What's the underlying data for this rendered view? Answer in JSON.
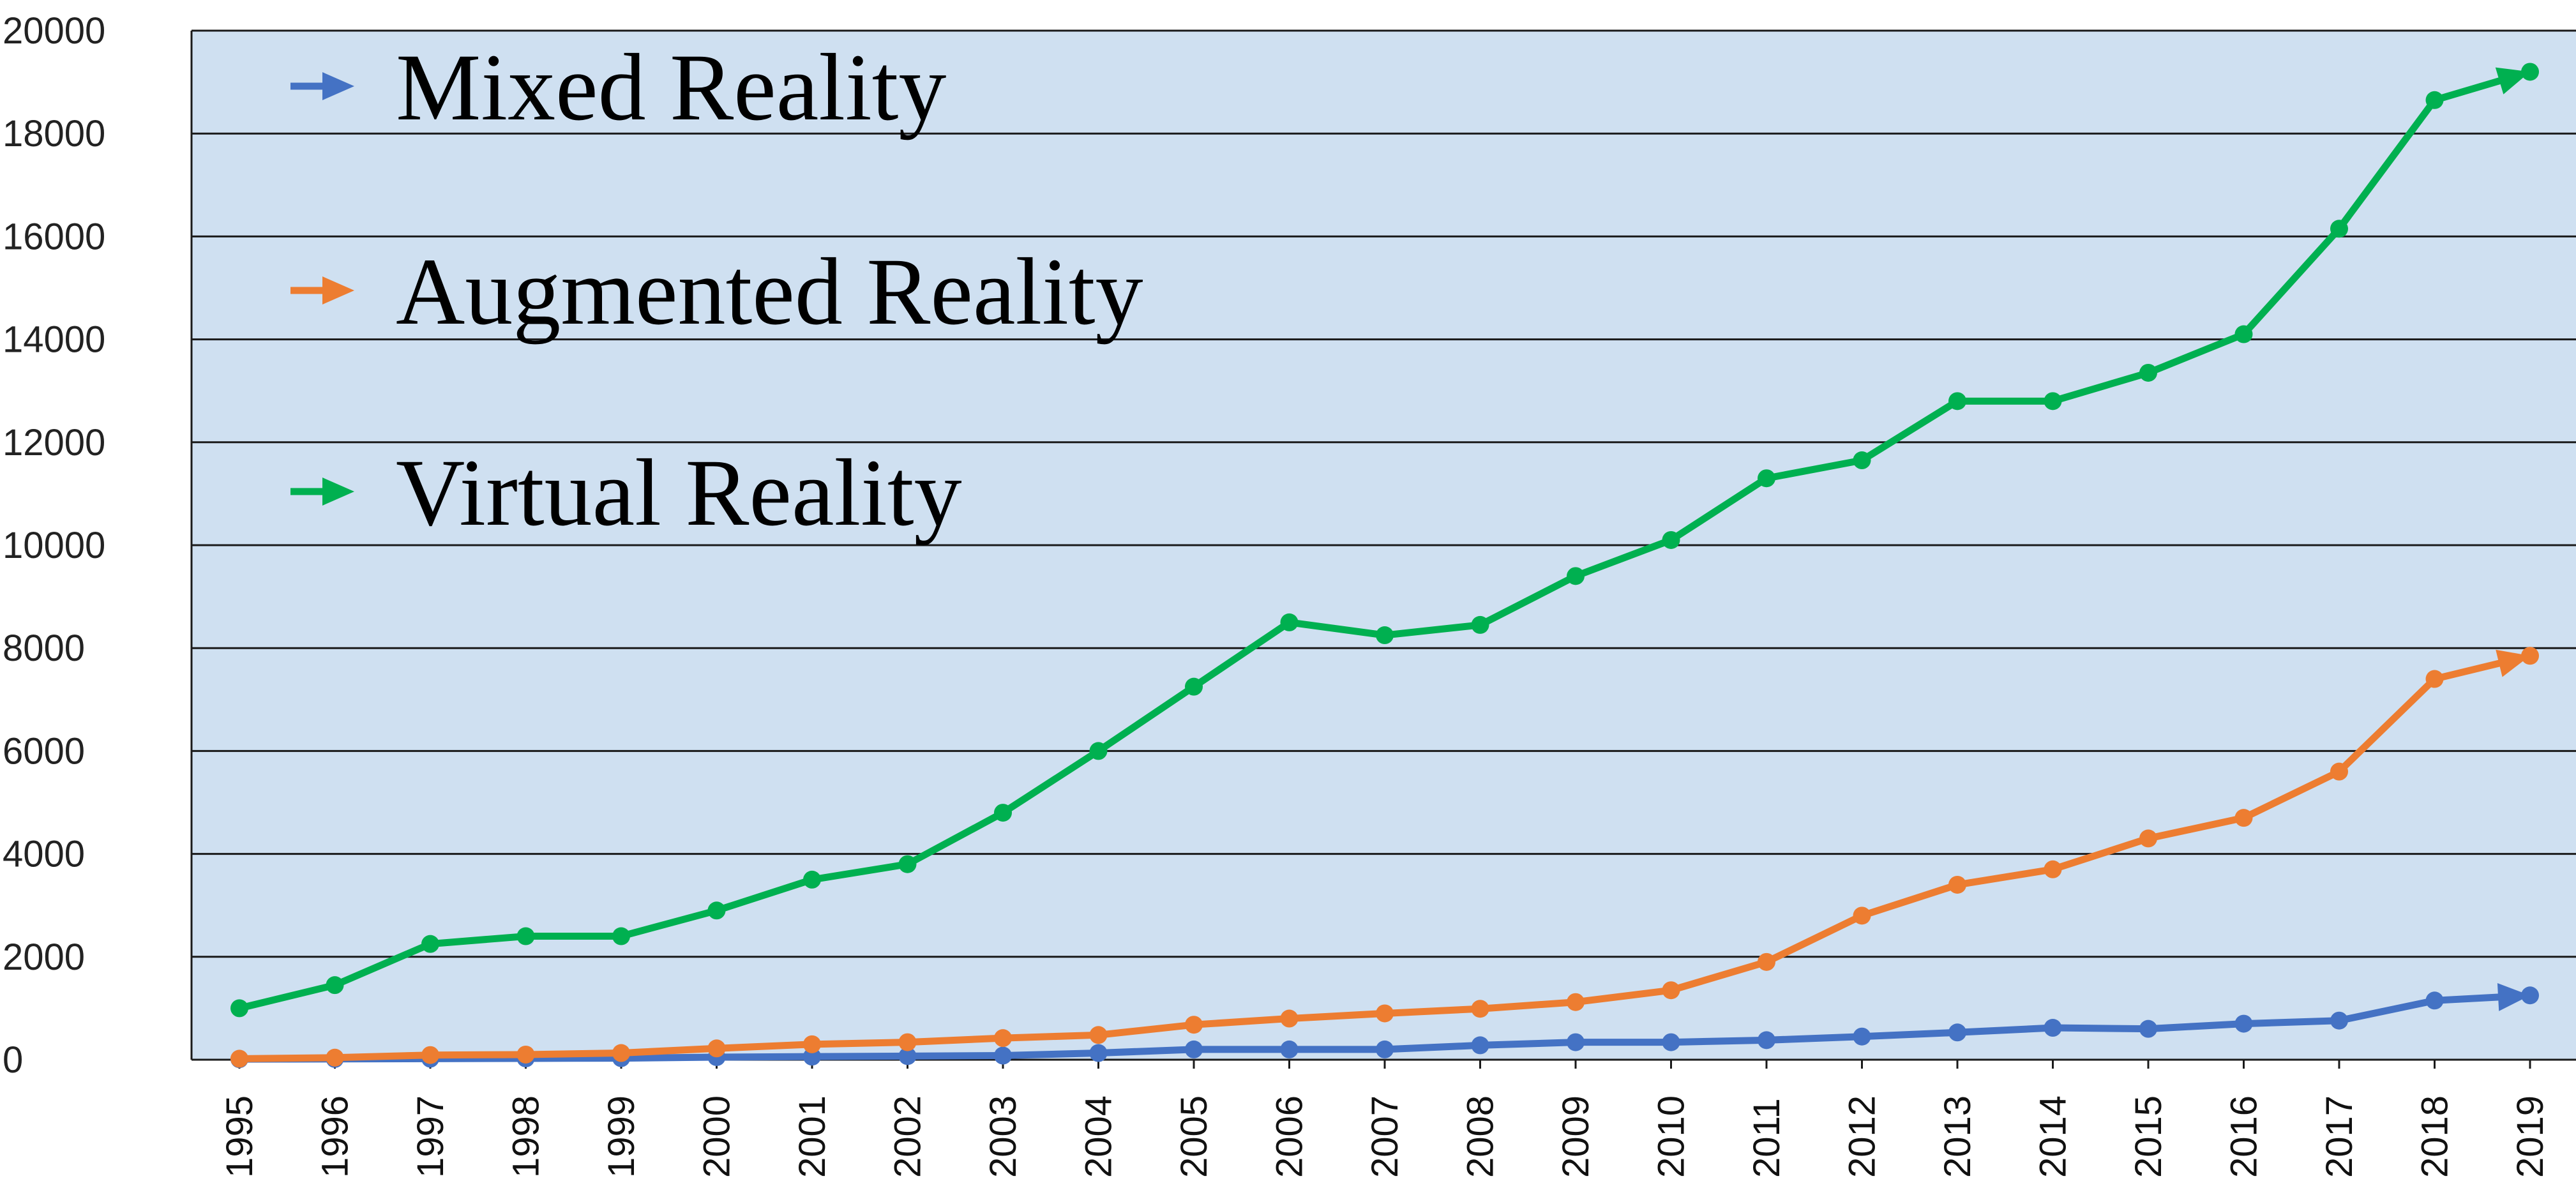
{
  "chart_data": {
    "type": "line",
    "title": "",
    "xlabel": "",
    "ylabel": "",
    "x": [
      "1995",
      "1996",
      "1997",
      "1998",
      "1999",
      "2000",
      "2001",
      "2002",
      "2003",
      "2004",
      "2005",
      "2006",
      "2007",
      "2008",
      "2009",
      "2010",
      "2011",
      "2012",
      "2013",
      "2014",
      "2015",
      "2016",
      "2017",
      "2018",
      "2019"
    ],
    "yticks": [
      "0",
      "2000",
      "4000",
      "6000",
      "8000",
      "10000",
      "12000",
      "14000",
      "16000",
      "18000",
      "20000"
    ],
    "ylim": [
      0,
      20000
    ],
    "grid": true,
    "legend_position": "top-left",
    "background_color": "#cfe0f1",
    "series": [
      {
        "name": "Mixed Reality",
        "color": "#4472c4",
        "values": [
          10,
          15,
          20,
          25,
          30,
          50,
          60,
          70,
          80,
          130,
          200,
          200,
          200,
          280,
          340,
          340,
          380,
          450,
          530,
          620,
          600,
          700,
          760,
          1150,
          1250
        ]
      },
      {
        "name": "Augmented Reality",
        "color": "#ed7d31",
        "values": [
          20,
          40,
          90,
          100,
          130,
          220,
          300,
          340,
          420,
          480,
          680,
          800,
          900,
          990,
          1120,
          1350,
          1900,
          2800,
          3400,
          3700,
          4300,
          4700,
          5600,
          7400,
          7850
        ]
      },
      {
        "name": "Virtual Reality",
        "color": "#00b050",
        "values": [
          1000,
          1450,
          2250,
          2400,
          2400,
          2900,
          3500,
          3800,
          4800,
          6000,
          7250,
          8500,
          8250,
          8450,
          9400,
          10100,
          11300,
          11650,
          12800,
          12800,
          13350,
          14100,
          16150,
          18650,
          19200
        ]
      }
    ]
  }
}
